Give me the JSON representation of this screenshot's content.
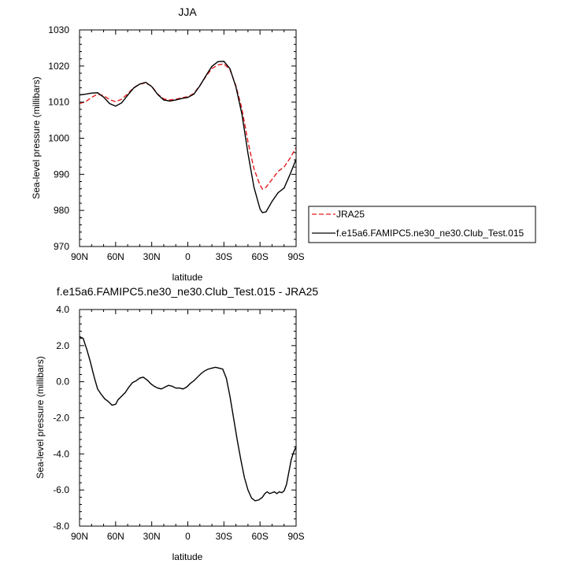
{
  "chart_data": [
    {
      "type": "line",
      "title": "JJA",
      "xlabel": "latitude",
      "ylabel": "Sea-level pressure (millibars)",
      "xlim": [
        90,
        -90
      ],
      "ylim": [
        970,
        1030
      ],
      "xticks": [
        90,
        60,
        30,
        0,
        -30,
        -60,
        -90
      ],
      "xtick_labels": [
        "90N",
        "60N",
        "30N",
        "0",
        "30S",
        "60S",
        "90S"
      ],
      "yticks": [
        970,
        980,
        990,
        1000,
        1010,
        1020,
        1030
      ],
      "ytick_labels": [
        "970",
        "980",
        "990",
        "1000",
        "1010",
        "1020",
        "1030"
      ],
      "grid": false,
      "legend": "right",
      "series": [
        {
          "name": "JRA25",
          "color": "#e41a1c",
          "dash": "dashed",
          "x": [
            90,
            85,
            80,
            75,
            70,
            65,
            60,
            55,
            50,
            45,
            40,
            35,
            30,
            25,
            20,
            15,
            10,
            5,
            0,
            -5,
            -10,
            -15,
            -20,
            -25,
            -30,
            -35,
            -40,
            -45,
            -50,
            -55,
            -60,
            -62,
            -65,
            -70,
            -75,
            -80,
            -85,
            -90
          ],
          "y": [
            1009.6,
            1010.1,
            1011.3,
            1012.2,
            1011.8,
            1010.7,
            1010.1,
            1010.8,
            1012.3,
            1014.0,
            1015.0,
            1015.3,
            1014.4,
            1012.2,
            1010.9,
            1010.6,
            1010.8,
            1011.2,
            1011.5,
            1012.4,
            1014.6,
            1017.1,
            1019.3,
            1020.3,
            1020.6,
            1019.0,
            1014.5,
            1008.1,
            999.0,
            991.5,
            987.0,
            985.9,
            986.4,
            988.6,
            990.8,
            992.0,
            994.5,
            997.4
          ]
        },
        {
          "name": "f.e15a6.FAMIPC5.ne30_ne30.Club_Test.015",
          "color": "#000000",
          "dash": "solid",
          "x": [
            90,
            85,
            80,
            75,
            70,
            65,
            60,
            55,
            50,
            45,
            40,
            35,
            30,
            25,
            20,
            15,
            10,
            5,
            0,
            -5,
            -10,
            -15,
            -20,
            -25,
            -30,
            -35,
            -40,
            -45,
            -50,
            -55,
            -60,
            -62,
            -65,
            -70,
            -75,
            -80,
            -85,
            -90
          ],
          "y": [
            1012.0,
            1012.2,
            1012.5,
            1012.6,
            1011.4,
            1009.6,
            1008.9,
            1009.8,
            1011.9,
            1013.9,
            1015.0,
            1015.5,
            1014.3,
            1012.1,
            1010.6,
            1010.3,
            1010.6,
            1011.0,
            1011.3,
            1012.2,
            1014.5,
            1017.3,
            1019.9,
            1021.2,
            1021.3,
            1019.3,
            1014.2,
            1006.6,
            995.8,
            986.4,
            980.4,
            979.4,
            979.6,
            982.5,
            984.9,
            986.2,
            990.0,
            994.2
          ]
        }
      ]
    },
    {
      "type": "line",
      "title": "f.e15a6.FAMIPC5.ne30_ne30.Club_Test.015 - JRA25",
      "xlabel": "latitude",
      "ylabel": "Sea-level pressure (millibars)",
      "xlim": [
        90,
        -90
      ],
      "ylim": [
        -8,
        4
      ],
      "xticks": [
        90,
        60,
        30,
        0,
        -30,
        -60,
        -90
      ],
      "xtick_labels": [
        "90N",
        "60N",
        "30N",
        "0",
        "30S",
        "60S",
        "90S"
      ],
      "yticks": [
        -8,
        -6,
        -4,
        -2,
        0,
        2,
        4
      ],
      "ytick_labels": [
        "-8.0",
        "-6.0",
        "-4.0",
        "-2.0",
        "0.0",
        "2.0",
        "4.0"
      ],
      "grid": false,
      "series": [
        {
          "color": "#000000",
          "dash": "solid",
          "x": [
            90,
            87,
            84,
            81,
            78,
            75,
            72,
            69,
            66,
            63,
            60,
            58,
            55,
            52,
            49,
            46,
            43,
            40,
            37,
            35,
            33,
            31,
            28,
            25,
            22,
            19,
            16,
            13,
            10,
            7,
            4,
            1,
            -2,
            -5,
            -8,
            -11,
            -14,
            -17,
            -20,
            -23,
            -26,
            -29,
            -32,
            -35,
            -38,
            -41,
            -44,
            -47,
            -50,
            -53,
            -56,
            -59,
            -62,
            -64,
            -66,
            -68,
            -70,
            -72,
            -74,
            -76,
            -78,
            -80,
            -82,
            -84,
            -86,
            -88,
            -90
          ],
          "y": [
            2.5,
            2.4,
            1.8,
            1.1,
            0.3,
            -0.4,
            -0.7,
            -0.95,
            -1.1,
            -1.3,
            -1.25,
            -1.0,
            -0.8,
            -0.6,
            -0.3,
            -0.05,
            0.05,
            0.2,
            0.25,
            0.15,
            0.05,
            -0.1,
            -0.25,
            -0.35,
            -0.4,
            -0.3,
            -0.2,
            -0.25,
            -0.35,
            -0.35,
            -0.4,
            -0.3,
            -0.1,
            0.05,
            0.25,
            0.45,
            0.6,
            0.7,
            0.75,
            0.8,
            0.75,
            0.7,
            0.2,
            -0.8,
            -2.0,
            -3.2,
            -4.3,
            -5.3,
            -6.0,
            -6.45,
            -6.6,
            -6.55,
            -6.4,
            -6.2,
            -6.1,
            -6.2,
            -6.15,
            -6.1,
            -6.2,
            -6.1,
            -6.15,
            -6.05,
            -5.7,
            -5.0,
            -4.3,
            -3.9,
            -3.6
          ]
        }
      ]
    }
  ]
}
